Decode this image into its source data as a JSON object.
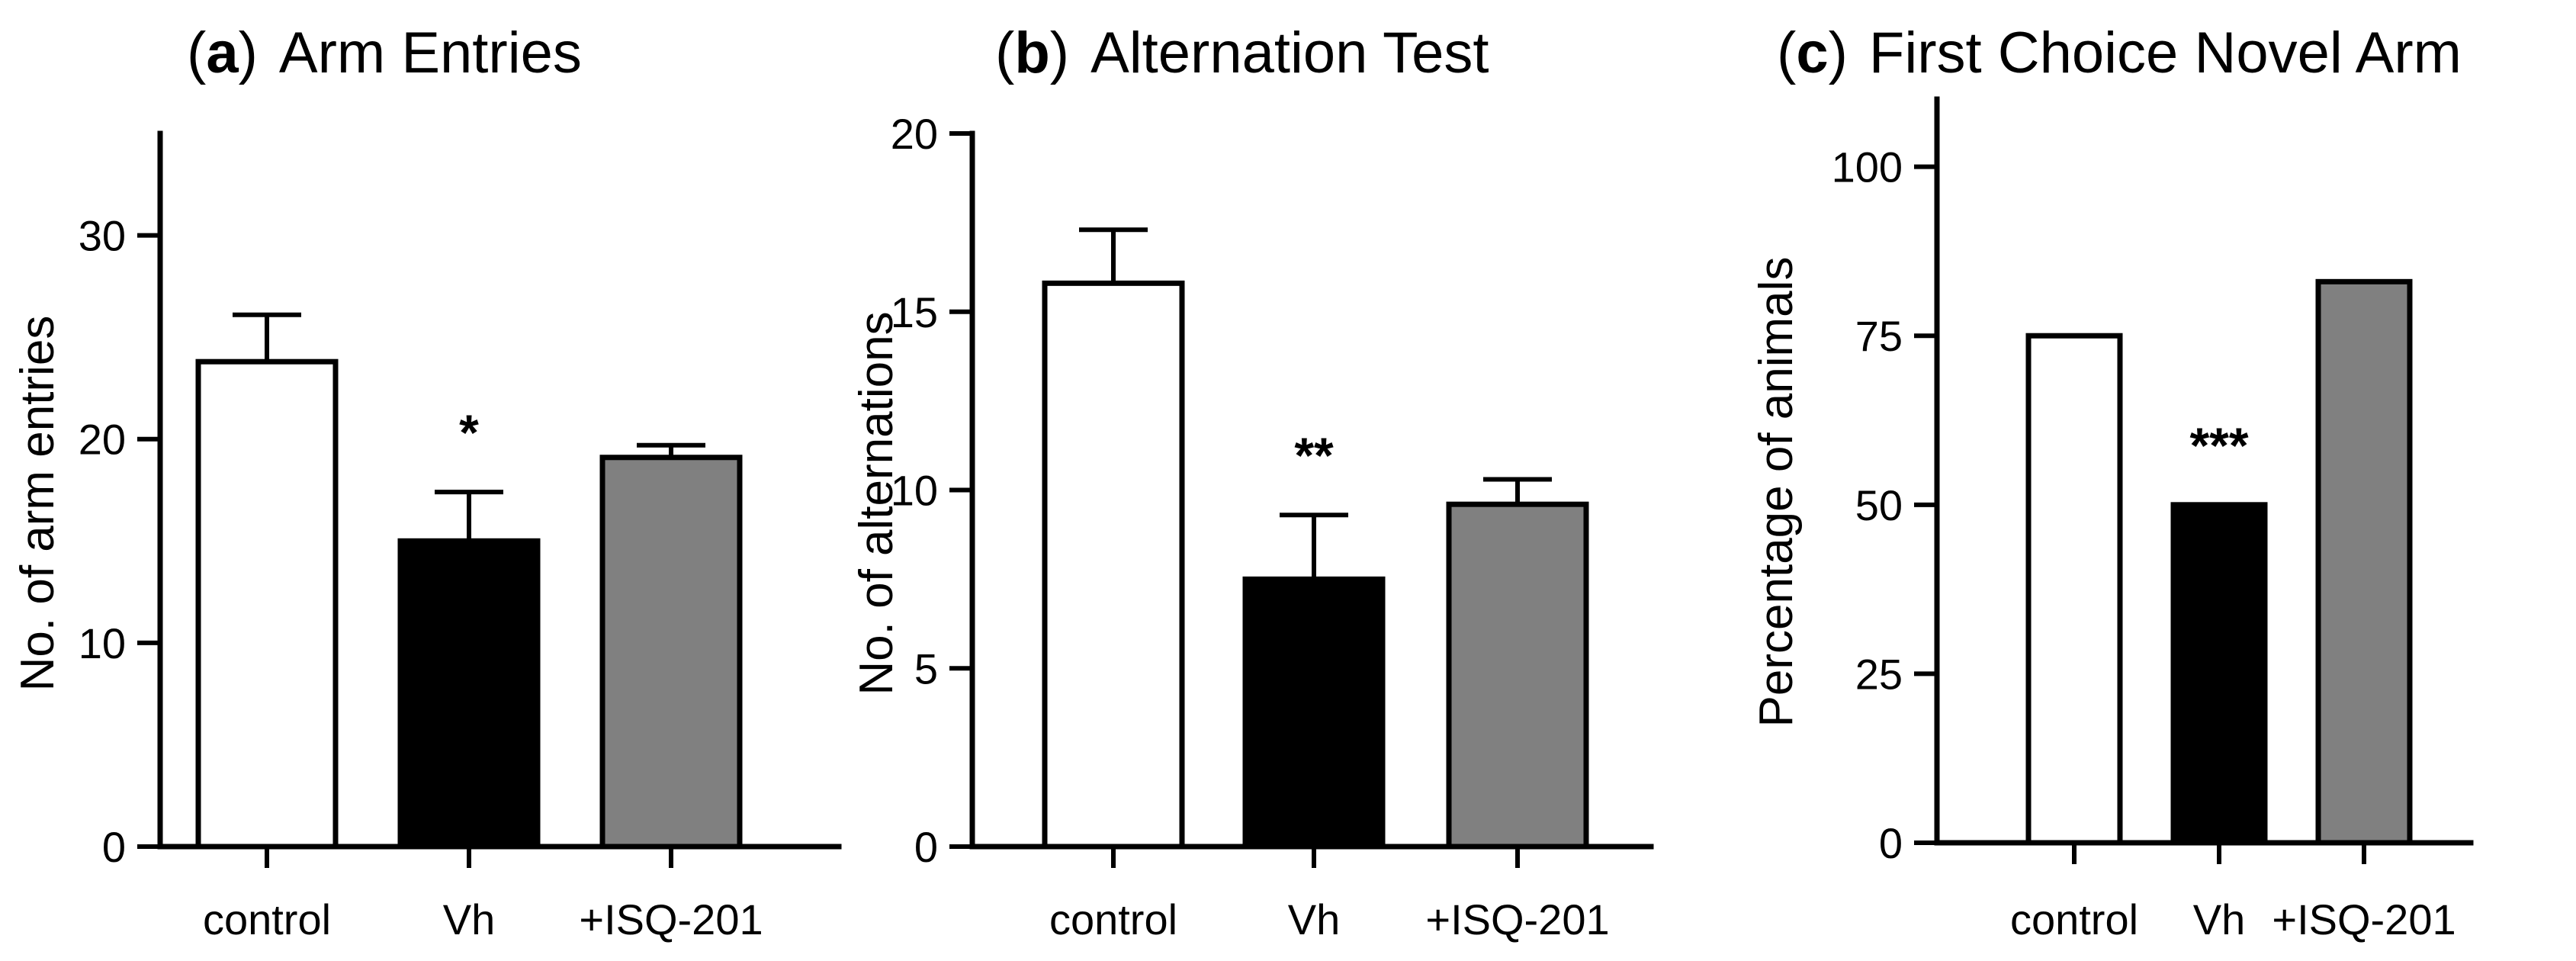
{
  "figure": {
    "background": "#ffffff"
  },
  "chart_data": [
    {
      "type": "bar",
      "panel": "a",
      "panel_label": "a",
      "title": "Arm Entries",
      "xlabel": "",
      "ylabel": "No. of arm entries",
      "categories": [
        "control",
        "Vh",
        "+ISQ-201"
      ],
      "values": [
        23.8,
        15.0,
        19.1
      ],
      "errors": [
        2.3,
        2.4,
        0.6
      ],
      "annotations": [
        "",
        "*",
        ""
      ],
      "colors": [
        "#ffffff",
        "#000000",
        "#808080"
      ],
      "ylim": [
        0,
        35
      ],
      "yticks": [
        0,
        10,
        20,
        30
      ],
      "ytick_labels": [
        "0",
        "10",
        "20",
        "30"
      ],
      "grid": false,
      "legend": "none"
    },
    {
      "type": "bar",
      "panel": "b",
      "panel_label": "b",
      "title": "Alternation Test",
      "xlabel": "",
      "ylabel": "No. of alternations",
      "categories": [
        "control",
        "Vh",
        "+ISQ-201"
      ],
      "values": [
        15.8,
        7.5,
        9.6
      ],
      "errors": [
        1.5,
        1.8,
        0.7
      ],
      "annotations": [
        "",
        "**",
        ""
      ],
      "colors": [
        "#ffffff",
        "#000000",
        "#808080"
      ],
      "ylim": [
        0,
        20
      ],
      "yticks": [
        0,
        5,
        10,
        15,
        20
      ],
      "ytick_labels": [
        "0",
        "5",
        "10",
        "15",
        "20"
      ],
      "grid": false,
      "legend": "none"
    },
    {
      "type": "bar",
      "panel": "c",
      "panel_label": "c",
      "title": "First Choice Novel Arm",
      "xlabel": "",
      "ylabel": "Percentage of animals",
      "categories": [
        "control",
        "Vh",
        "+ISQ-201"
      ],
      "values": [
        75,
        50,
        83
      ],
      "errors": [
        0,
        0,
        0
      ],
      "annotations": [
        "",
        "***",
        ""
      ],
      "colors": [
        "#ffffff",
        "#000000",
        "#808080"
      ],
      "ylim": [
        0,
        110
      ],
      "yticks": [
        0,
        25,
        50,
        75,
        100
      ],
      "ytick_labels": [
        "0",
        "25",
        "50",
        "75",
        "100"
      ],
      "grid": false,
      "legend": "none"
    }
  ]
}
